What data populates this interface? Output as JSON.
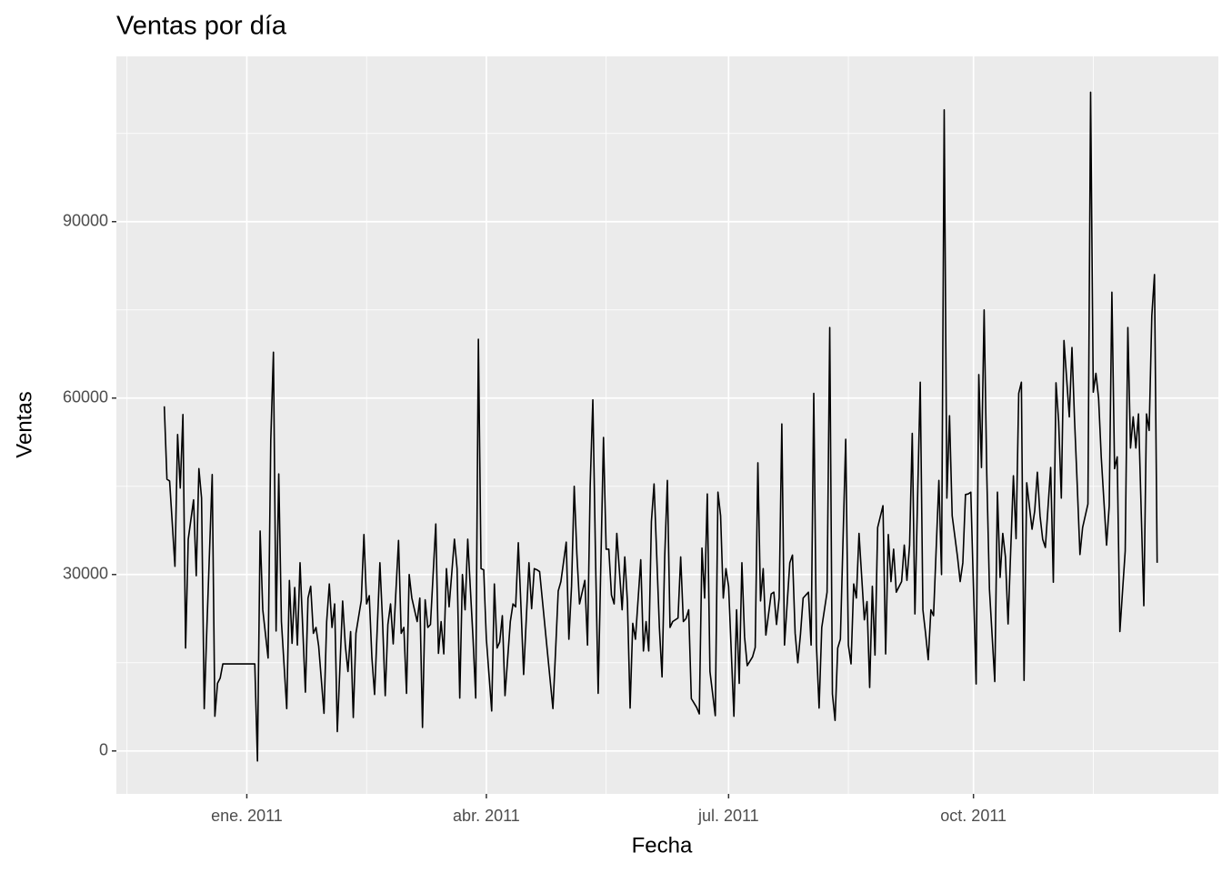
{
  "chart_data": {
    "type": "line",
    "title": "Ventas por día",
    "x_label": "Fecha",
    "y_label": "Ventas",
    "color": "#000000",
    "grid": true,
    "xlim": [
      "2010-11-13",
      "2012-01-01"
    ],
    "xticks": [
      {
        "value": "2011-01-01",
        "label": "ene. 2011"
      },
      {
        "value": "2011-04-01",
        "label": "abr. 2011"
      },
      {
        "value": "2011-07-01",
        "label": "jul. 2011"
      },
      {
        "value": "2011-10-01",
        "label": "oct. 2011"
      }
    ],
    "ylim": [
      -7300,
      118100
    ],
    "yticks": [
      0,
      30000,
      60000,
      90000
    ],
    "x": [
      "2010-12-01",
      "2010-12-02",
      "2010-12-03",
      "2010-12-05",
      "2010-12-06",
      "2010-12-07",
      "2010-12-08",
      "2010-12-09",
      "2010-12-10",
      "2010-12-12",
      "2010-12-13",
      "2010-12-14",
      "2010-12-15",
      "2010-12-16",
      "2010-12-17",
      "2010-12-19",
      "2010-12-20",
      "2010-12-21",
      "2010-12-22",
      "2010-12-23",
      "2011-01-04",
      "2011-01-05",
      "2011-01-06",
      "2011-01-07",
      "2011-01-09",
      "2011-01-10",
      "2011-01-11",
      "2011-01-12",
      "2011-01-13",
      "2011-01-14",
      "2011-01-16",
      "2011-01-17",
      "2011-01-18",
      "2011-01-19",
      "2011-01-20",
      "2011-01-21",
      "2011-01-23",
      "2011-01-24",
      "2011-01-25",
      "2011-01-26",
      "2011-01-27",
      "2011-01-28",
      "2011-01-30",
      "2011-01-31",
      "2011-02-01",
      "2011-02-02",
      "2011-02-03",
      "2011-02-04",
      "2011-02-06",
      "2011-02-07",
      "2011-02-08",
      "2011-02-09",
      "2011-02-10",
      "2011-02-11",
      "2011-02-13",
      "2011-02-14",
      "2011-02-15",
      "2011-02-16",
      "2011-02-17",
      "2011-02-18",
      "2011-02-20",
      "2011-02-21",
      "2011-02-22",
      "2011-02-23",
      "2011-02-24",
      "2011-02-25",
      "2011-02-27",
      "2011-02-28",
      "2011-03-01",
      "2011-03-02",
      "2011-03-03",
      "2011-03-04",
      "2011-03-06",
      "2011-03-07",
      "2011-03-08",
      "2011-03-09",
      "2011-03-10",
      "2011-03-11",
      "2011-03-13",
      "2011-03-14",
      "2011-03-15",
      "2011-03-16",
      "2011-03-17",
      "2011-03-18",
      "2011-03-20",
      "2011-03-21",
      "2011-03-22",
      "2011-03-23",
      "2011-03-24",
      "2011-03-25",
      "2011-03-27",
      "2011-03-28",
      "2011-03-29",
      "2011-03-30",
      "2011-03-31",
      "2011-04-01",
      "2011-04-03",
      "2011-04-04",
      "2011-04-05",
      "2011-04-06",
      "2011-04-07",
      "2011-04-08",
      "2011-04-10",
      "2011-04-11",
      "2011-04-12",
      "2011-04-13",
      "2011-04-14",
      "2011-04-15",
      "2011-04-17",
      "2011-04-18",
      "2011-04-19",
      "2011-04-20",
      "2011-04-21",
      "2011-04-26",
      "2011-04-27",
      "2011-04-28",
      "2011-04-29",
      "2011-05-01",
      "2011-05-02",
      "2011-05-03",
      "2011-05-04",
      "2011-05-05",
      "2011-05-06",
      "2011-05-08",
      "2011-05-09",
      "2011-05-10",
      "2011-05-11",
      "2011-05-12",
      "2011-05-13",
      "2011-05-15",
      "2011-05-16",
      "2011-05-17",
      "2011-05-18",
      "2011-05-19",
      "2011-05-20",
      "2011-05-22",
      "2011-05-23",
      "2011-05-24",
      "2011-05-25",
      "2011-05-26",
      "2011-05-27",
      "2011-05-29",
      "2011-05-30",
      "2011-05-31",
      "2011-06-01",
      "2011-06-02",
      "2011-06-03",
      "2011-06-05",
      "2011-06-06",
      "2011-06-07",
      "2011-06-08",
      "2011-06-09",
      "2011-06-10",
      "2011-06-12",
      "2011-06-13",
      "2011-06-14",
      "2011-06-15",
      "2011-06-16",
      "2011-06-17",
      "2011-06-19",
      "2011-06-20",
      "2011-06-21",
      "2011-06-22",
      "2011-06-23",
      "2011-06-24",
      "2011-06-26",
      "2011-06-27",
      "2011-06-28",
      "2011-06-29",
      "2011-06-30",
      "2011-07-01",
      "2011-07-03",
      "2011-07-04",
      "2011-07-05",
      "2011-07-06",
      "2011-07-07",
      "2011-07-08",
      "2011-07-10",
      "2011-07-11",
      "2011-07-12",
      "2011-07-13",
      "2011-07-14",
      "2011-07-15",
      "2011-07-17",
      "2011-07-18",
      "2011-07-19",
      "2011-07-20",
      "2011-07-21",
      "2011-07-22",
      "2011-07-24",
      "2011-07-25",
      "2011-07-26",
      "2011-07-27",
      "2011-07-28",
      "2011-07-29",
      "2011-07-31",
      "2011-08-01",
      "2011-08-02",
      "2011-08-03",
      "2011-08-04",
      "2011-08-05",
      "2011-08-07",
      "2011-08-08",
      "2011-08-09",
      "2011-08-10",
      "2011-08-11",
      "2011-08-12",
      "2011-08-14",
      "2011-08-15",
      "2011-08-16",
      "2011-08-17",
      "2011-08-18",
      "2011-08-19",
      "2011-08-21",
      "2011-08-22",
      "2011-08-23",
      "2011-08-24",
      "2011-08-25",
      "2011-08-26",
      "2011-08-28",
      "2011-08-29",
      "2011-08-30",
      "2011-08-31",
      "2011-09-01",
      "2011-09-02",
      "2011-09-04",
      "2011-09-05",
      "2011-09-06",
      "2011-09-07",
      "2011-09-08",
      "2011-09-09",
      "2011-09-11",
      "2011-09-12",
      "2011-09-13",
      "2011-09-14",
      "2011-09-15",
      "2011-09-16",
      "2011-09-18",
      "2011-09-19",
      "2011-09-20",
      "2011-09-21",
      "2011-09-22",
      "2011-09-23",
      "2011-09-25",
      "2011-09-26",
      "2011-09-27",
      "2011-09-28",
      "2011-09-29",
      "2011-09-30",
      "2011-10-02",
      "2011-10-03",
      "2011-10-04",
      "2011-10-05",
      "2011-10-06",
      "2011-10-07",
      "2011-10-09",
      "2011-10-10",
      "2011-10-11",
      "2011-10-12",
      "2011-10-13",
      "2011-10-14",
      "2011-10-16",
      "2011-10-17",
      "2011-10-18",
      "2011-10-19",
      "2011-10-20",
      "2011-10-21",
      "2011-10-23",
      "2011-10-24",
      "2011-10-25",
      "2011-10-26",
      "2011-10-27",
      "2011-10-28",
      "2011-10-30",
      "2011-10-31",
      "2011-11-01",
      "2011-11-02",
      "2011-11-03",
      "2011-11-04",
      "2011-11-06",
      "2011-11-07",
      "2011-11-08",
      "2011-11-09",
      "2011-11-10",
      "2011-11-11",
      "2011-11-13",
      "2011-11-14",
      "2011-11-15",
      "2011-11-16",
      "2011-11-17",
      "2011-11-18",
      "2011-11-20",
      "2011-11-21",
      "2011-11-22",
      "2011-11-23",
      "2011-11-24",
      "2011-11-25",
      "2011-11-27",
      "2011-11-28",
      "2011-11-29",
      "2011-11-30",
      "2011-12-01",
      "2011-12-02",
      "2011-12-04",
      "2011-12-05",
      "2011-12-06",
      "2011-12-07",
      "2011-12-08",
      "2011-12-09"
    ],
    "values": [
      58600,
      46200,
      45900,
      31400,
      53800,
      44700,
      57200,
      17500,
      36000,
      42700,
      29800,
      48000,
      43000,
      7200,
      21000,
      47000,
      5900,
      11500,
      12400,
      14800,
      14800,
      -1700,
      37400,
      24000,
      15800,
      52800,
      67800,
      20400,
      47100,
      22000,
      7200,
      29000,
      18300,
      27800,
      18000,
      32000,
      10000,
      26000,
      28000,
      20000,
      21000,
      17800,
      6400,
      22000,
      28400,
      21000,
      25000,
      3300,
      25500,
      18000,
      13500,
      20300,
      5700,
      20000,
      25600,
      36800,
      25000,
      26400,
      15800,
      9600,
      32000,
      22000,
      9400,
      21500,
      25000,
      18200,
      35800,
      20000,
      21000,
      9800,
      30000,
      26000,
      22000,
      26000,
      4000,
      25700,
      21000,
      21500,
      38600,
      16600,
      22000,
      16500,
      31000,
      24500,
      36000,
      31000,
      9000,
      30000,
      24000,
      36000,
      19000,
      9000,
      70000,
      31000,
      30800,
      19000,
      6800,
      28400,
      17500,
      18500,
      23000,
      9400,
      22000,
      25000,
      24500,
      35400,
      24500,
      13000,
      32000,
      24200,
      31000,
      30800,
      30500,
      7200,
      17000,
      27200,
      28800,
      35500,
      19000,
      28000,
      45000,
      33500,
      25000,
      29000,
      18000,
      45000,
      59700,
      33000,
      9800,
      53300,
      34300,
      34300,
      26500,
      25000,
      37000,
      24000,
      33000,
      25300,
      7300,
      21700,
      19000,
      32500,
      17000,
      22000,
      17000,
      39000,
      45400,
      21000,
      12600,
      33000,
      46000,
      21000,
      22000,
      22600,
      33000,
      22000,
      22500,
      24000,
      8900,
      7400,
      6300,
      34500,
      26000,
      43700,
      13500,
      6000,
      44000,
      40000,
      26000,
      31000,
      28000,
      5900,
      24000,
      11500,
      32000,
      19400,
      14500,
      16000,
      17600,
      49000,
      25500,
      31000,
      19700,
      26700,
      27000,
      21500,
      26000,
      55600,
      18000,
      32000,
      33300,
      20000,
      15000,
      19800,
      26000,
      27000,
      18000,
      60800,
      18000,
      7300,
      21000,
      27000,
      72000,
      9700,
      5200,
      17500,
      19000,
      53000,
      18000,
      14800,
      28400,
      26000,
      37000,
      22300,
      25400,
      10800,
      28000,
      16300,
      38000,
      41700,
      16500,
      36800,
      28800,
      34300,
      27000,
      28800,
      35000,
      29000,
      35000,
      54000,
      23300,
      62700,
      24000,
      20000,
      15500,
      24000,
      23000,
      46000,
      30000,
      109000,
      43000,
      57000,
      40000,
      33000,
      28800,
      32000,
      43600,
      43700,
      44000,
      11400,
      64000,
      48200,
      75000,
      47000,
      27500,
      11800,
      44000,
      29500,
      37000,
      33000,
      21600,
      46800,
      36100,
      60800,
      62700,
      12000,
      45600,
      37700,
      40800,
      47400,
      40000,
      36000,
      34600,
      48200,
      28700,
      62600,
      56000,
      43000,
      69800,
      56800,
      68600,
      56000,
      45000,
      33400,
      38000,
      42000,
      112000,
      61000,
      64200,
      60000,
      50000,
      35000,
      41700,
      78000,
      48000,
      50000,
      20300,
      34000,
      72000,
      51500,
      56800,
      51500,
      57300,
      24700,
      57300,
      54500,
      74000,
      81000,
      32000
    ]
  }
}
